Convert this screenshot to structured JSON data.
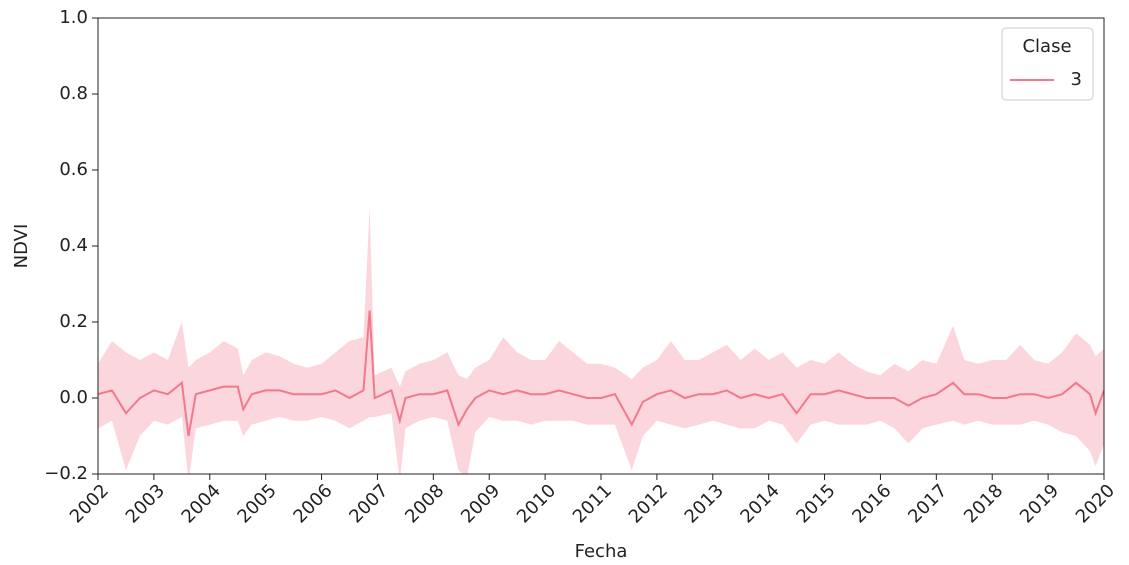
{
  "chart_data": {
    "type": "line",
    "xlabel": "Fecha",
    "ylabel": "NDVI",
    "legend_title": "Clase",
    "legend": "upper right",
    "x": [
      2002.0,
      2002.25,
      2002.5,
      2002.75,
      2003.0,
      2003.25,
      2003.5,
      2003.62,
      2003.75,
      2004.0,
      2004.25,
      2004.5,
      2004.6,
      2004.75,
      2005.0,
      2005.25,
      2005.5,
      2005.75,
      2006.0,
      2006.25,
      2006.5,
      2006.75,
      2006.86,
      2006.95,
      2007.25,
      2007.4,
      2007.5,
      2007.75,
      2008.0,
      2008.25,
      2008.45,
      2008.6,
      2008.75,
      2009.0,
      2009.25,
      2009.5,
      2009.75,
      2010.0,
      2010.25,
      2010.5,
      2010.75,
      2011.0,
      2011.25,
      2011.55,
      2011.75,
      2012.0,
      2012.25,
      2012.5,
      2012.75,
      2013.0,
      2013.25,
      2013.5,
      2013.75,
      2014.0,
      2014.25,
      2014.5,
      2014.75,
      2015.0,
      2015.25,
      2015.5,
      2015.75,
      2016.0,
      2016.25,
      2016.5,
      2016.75,
      2017.0,
      2017.3,
      2017.5,
      2017.75,
      2018.0,
      2018.25,
      2018.5,
      2018.75,
      2019.0,
      2019.25,
      2019.5,
      2019.75,
      2019.85,
      2020.0
    ],
    "series": [
      {
        "name": "3",
        "color": "#f0798c",
        "band_color": "#fcd6dd",
        "values": [
          0.01,
          0.02,
          -0.04,
          0.0,
          0.02,
          0.01,
          0.04,
          -0.1,
          0.01,
          0.02,
          0.03,
          0.03,
          -0.03,
          0.01,
          0.02,
          0.02,
          0.01,
          0.01,
          0.01,
          0.02,
          0.0,
          0.02,
          0.23,
          0.0,
          0.02,
          -0.06,
          0.0,
          0.01,
          0.01,
          0.02,
          -0.07,
          -0.03,
          0.0,
          0.02,
          0.01,
          0.02,
          0.01,
          0.01,
          0.02,
          0.01,
          0.0,
          0.0,
          0.01,
          -0.07,
          -0.01,
          0.01,
          0.02,
          0.0,
          0.01,
          0.01,
          0.02,
          0.0,
          0.01,
          0.0,
          0.01,
          -0.04,
          0.01,
          0.01,
          0.02,
          0.01,
          0.0,
          0.0,
          0.0,
          -0.02,
          0.0,
          0.01,
          0.04,
          0.01,
          0.01,
          0.0,
          0.0,
          0.01,
          0.01,
          0.0,
          0.01,
          0.04,
          0.01,
          -0.04,
          0.02
        ],
        "lower": [
          -0.08,
          -0.06,
          -0.19,
          -0.1,
          -0.06,
          -0.07,
          -0.05,
          -0.22,
          -0.08,
          -0.07,
          -0.06,
          -0.06,
          -0.1,
          -0.07,
          -0.06,
          -0.05,
          -0.06,
          -0.06,
          -0.05,
          -0.06,
          -0.08,
          -0.06,
          -0.05,
          -0.05,
          -0.04,
          -0.22,
          -0.08,
          -0.06,
          -0.05,
          -0.06,
          -0.19,
          -0.21,
          -0.09,
          -0.05,
          -0.06,
          -0.06,
          -0.07,
          -0.06,
          -0.06,
          -0.06,
          -0.07,
          -0.07,
          -0.07,
          -0.19,
          -0.1,
          -0.06,
          -0.07,
          -0.08,
          -0.07,
          -0.06,
          -0.07,
          -0.08,
          -0.08,
          -0.06,
          -0.07,
          -0.12,
          -0.07,
          -0.06,
          -0.07,
          -0.07,
          -0.07,
          -0.06,
          -0.08,
          -0.12,
          -0.08,
          -0.07,
          -0.06,
          -0.07,
          -0.06,
          -0.07,
          -0.07,
          -0.07,
          -0.06,
          -0.07,
          -0.09,
          -0.1,
          -0.14,
          -0.18,
          -0.12
        ],
        "upper": [
          0.09,
          0.15,
          0.12,
          0.1,
          0.12,
          0.1,
          0.2,
          0.08,
          0.1,
          0.12,
          0.15,
          0.13,
          0.06,
          0.1,
          0.12,
          0.11,
          0.09,
          0.08,
          0.09,
          0.12,
          0.15,
          0.16,
          0.5,
          0.06,
          0.08,
          0.03,
          0.07,
          0.09,
          0.1,
          0.12,
          0.06,
          0.05,
          0.08,
          0.1,
          0.16,
          0.12,
          0.1,
          0.1,
          0.15,
          0.12,
          0.09,
          0.09,
          0.08,
          0.05,
          0.08,
          0.1,
          0.15,
          0.1,
          0.1,
          0.12,
          0.14,
          0.1,
          0.13,
          0.1,
          0.12,
          0.08,
          0.1,
          0.09,
          0.12,
          0.09,
          0.07,
          0.06,
          0.09,
          0.07,
          0.1,
          0.09,
          0.19,
          0.1,
          0.09,
          0.1,
          0.1,
          0.14,
          0.1,
          0.09,
          0.12,
          0.17,
          0.14,
          0.11,
          0.13
        ]
      }
    ],
    "xlim": [
      2002,
      2020
    ],
    "xticks": [
      2002,
      2003,
      2004,
      2005,
      2006,
      2007,
      2008,
      2009,
      2010,
      2011,
      2012,
      2013,
      2014,
      2015,
      2016,
      2017,
      2018,
      2019,
      2020
    ],
    "ylim": [
      -0.2,
      1.0
    ],
    "yticks": [
      {
        "value": -0.2,
        "label": "−0.2"
      },
      {
        "value": 0,
        "label": "0.0"
      },
      {
        "value": 0.2,
        "label": "0.2"
      },
      {
        "value": 0.4,
        "label": "0.4"
      },
      {
        "value": 0.6,
        "label": "0.6"
      },
      {
        "value": 0.8,
        "label": "0.8"
      },
      {
        "value": 1.0,
        "label": "1.0"
      }
    ]
  }
}
